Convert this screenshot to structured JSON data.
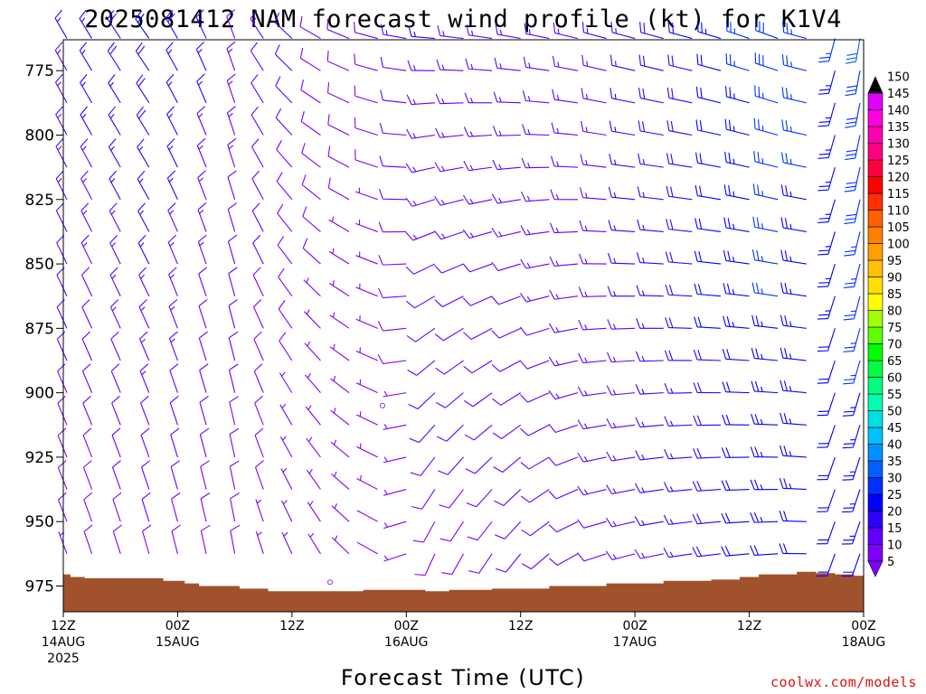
{
  "chart_data": {
    "type": "wind_barb_time_height",
    "title": "2025081412 NAM forecast wind profile (kt) for K1V4",
    "xlabel": "Forecast Time (UTC)",
    "ylabel": "",
    "credit": "coolwx.com/models",
    "x_ticks": [
      {
        "hour": 0,
        "line1": "12Z",
        "line2": "14AUG",
        "line3": "2025"
      },
      {
        "hour": 12,
        "line1": "00Z",
        "line2": "15AUG",
        "line3": ""
      },
      {
        "hour": 24,
        "line1": "12Z",
        "line2": "",
        "line3": ""
      },
      {
        "hour": 36,
        "line1": "00Z",
        "line2": "16AUG",
        "line3": ""
      },
      {
        "hour": 48,
        "line1": "12Z",
        "line2": "",
        "line3": ""
      },
      {
        "hour": 60,
        "line1": "00Z",
        "line2": "17AUG",
        "line3": ""
      },
      {
        "hour": 72,
        "line1": "12Z",
        "line2": "",
        "line3": ""
      },
      {
        "hour": 84,
        "line1": "00Z",
        "line2": "18AUG",
        "line3": ""
      }
    ],
    "xlim_hours": [
      0,
      84
    ],
    "y_ticks": [
      775,
      800,
      825,
      850,
      875,
      900,
      925,
      950,
      975
    ],
    "ylim_hpa": [
      763,
      985
    ],
    "y_scale": "pressure (hPa), increasing downward",
    "levels_hpa": [
      762.5,
      775,
      787.5,
      800,
      812.5,
      825,
      837.5,
      850,
      862.5,
      875,
      887.5,
      900,
      912.5,
      925,
      937.5,
      950,
      962.5,
      975
    ],
    "times_hours": [
      0,
      3,
      6,
      9,
      12,
      15,
      18,
      21,
      24,
      27,
      30,
      33,
      36,
      39,
      42,
      45,
      48,
      51,
      54,
      57,
      60,
      63,
      66,
      69,
      72,
      75,
      78,
      81,
      84
    ],
    "keyframes": [
      {
        "t": 0,
        "low": {
          "dir": 340,
          "spd": 7
        },
        "high": {
          "dir": 330,
          "spd": 15
        }
      },
      {
        "t": 9,
        "low": {
          "dir": 345,
          "spd": 9
        },
        "high": {
          "dir": 325,
          "spd": 20
        }
      },
      {
        "t": 18,
        "low": {
          "dir": 350,
          "spd": 8
        },
        "high": {
          "dir": 340,
          "spd": 14
        }
      },
      {
        "t": 27,
        "low": {
          "dir": 330,
          "spd": 4
        },
        "high": {
          "dir": 300,
          "spd": 10
        }
      },
      {
        "t": 33,
        "low": {
          "dir": 300,
          "spd": 1
        },
        "high": {
          "dir": 285,
          "spd": 10
        }
      },
      {
        "t": 39,
        "low": {
          "dir": 200,
          "spd": 8
        },
        "high": {
          "dir": 275,
          "spd": 15
        }
      },
      {
        "t": 48,
        "low": {
          "dir": 215,
          "spd": 10
        },
        "high": {
          "dir": 280,
          "spd": 14
        }
      },
      {
        "t": 57,
        "low": {
          "dir": 250,
          "spd": 12
        },
        "high": {
          "dir": 285,
          "spd": 15
        }
      },
      {
        "t": 66,
        "low": {
          "dir": 260,
          "spd": 16
        },
        "high": {
          "dir": 285,
          "spd": 20
        }
      },
      {
        "t": 75,
        "low": {
          "dir": 265,
          "spd": 22
        },
        "high": {
          "dir": 290,
          "spd": 28
        }
      },
      {
        "t": 78,
        "low": {
          "dir": 270,
          "spd": 22
        },
        "high": {
          "dir": 285,
          "spd": 26
        }
      },
      {
        "t": 81,
        "low": {
          "dir": 200,
          "spd": 20
        },
        "high": {
          "dir": 195,
          "spd": 25
        }
      },
      {
        "t": 84,
        "low": {
          "dir": 200,
          "spd": 22
        },
        "high": {
          "dir": 190,
          "spd": 30
        }
      }
    ],
    "calm_points": [
      {
        "t": 28,
        "p": 973.5
      },
      {
        "t": 33.5,
        "p": 905
      }
    ],
    "surface_pressure_hpa": [
      {
        "t": 0,
        "p": 970.5
      },
      {
        "t": 1.5,
        "p": 971.5
      },
      {
        "t": 3,
        "p": 972
      },
      {
        "t": 9,
        "p": 972
      },
      {
        "t": 12,
        "p": 973
      },
      {
        "t": 13.5,
        "p": 974
      },
      {
        "t": 15,
        "p": 975
      },
      {
        "t": 18,
        "p": 975
      },
      {
        "t": 19,
        "p": 976
      },
      {
        "t": 24,
        "p": 977
      },
      {
        "t": 30,
        "p": 977
      },
      {
        "t": 33,
        "p": 976.5
      },
      {
        "t": 37,
        "p": 976.5
      },
      {
        "t": 39,
        "p": 977
      },
      {
        "t": 42,
        "p": 976.5
      },
      {
        "t": 48,
        "p": 976
      },
      {
        "t": 54,
        "p": 975
      },
      {
        "t": 60,
        "p": 974
      },
      {
        "t": 66,
        "p": 973
      },
      {
        "t": 70,
        "p": 972.5
      },
      {
        "t": 72,
        "p": 971.5
      },
      {
        "t": 74,
        "p": 970.5
      },
      {
        "t": 76,
        "p": 970.5
      },
      {
        "t": 78,
        "p": 969.5
      },
      {
        "t": 80,
        "p": 970
      },
      {
        "t": 82,
        "p": 970.5
      },
      {
        "t": 84,
        "p": 971
      }
    ],
    "terrain_color": "#a0522d",
    "colorbar": {
      "min": 5,
      "max": 150,
      "step": 5,
      "colors": [
        "#8000ff",
        "#6000ff",
        "#3000ff",
        "#0000ff",
        "#0030ff",
        "#0060ff",
        "#0090ff",
        "#00c0ff",
        "#00e0e0",
        "#00ffb0",
        "#00ff80",
        "#00ff40",
        "#00ff00",
        "#60ff00",
        "#a0ff00",
        "#ffff00",
        "#ffe000",
        "#ffc000",
        "#ffa000",
        "#ff8000",
        "#ff6000",
        "#ff3000",
        "#ff0000",
        "#ff0040",
        "#ff0080",
        "#ff00b0",
        "#ff00e0",
        "#e000ff",
        "#000000"
      ],
      "labels": [
        150,
        145,
        140,
        135,
        130,
        125,
        120,
        115,
        110,
        105,
        100,
        95,
        90,
        85,
        80,
        75,
        70,
        65,
        60,
        55,
        50,
        45,
        40,
        35,
        30,
        25,
        20,
        15,
        10,
        5
      ]
    }
  }
}
